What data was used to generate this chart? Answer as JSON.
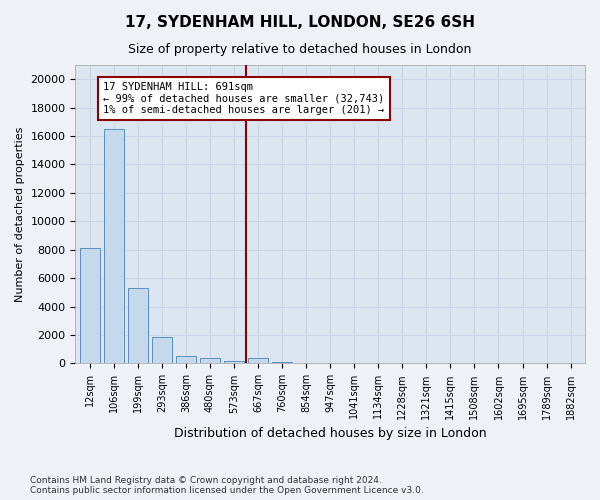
{
  "title": "17, SYDENHAM HILL, LONDON, SE26 6SH",
  "subtitle": "Size of property relative to detached houses in London",
  "xlabel": "Distribution of detached houses by size in London",
  "ylabel": "Number of detached properties",
  "bar_color": "#c5d8ec",
  "bar_edge_color": "#5a8fc2",
  "grid_color": "#c8d4e8",
  "background_color": "#dce6f1",
  "vline_color": "#8b0000",
  "vline_x": 6.5,
  "annotation_text": "17 SYDENHAM HILL: 691sqm\n← 99% of detached houses are smaller (32,743)\n1% of semi-detached houses are larger (201) →",
  "annotation_box_color": "#ffffff",
  "annotation_box_edge": "#8b0000",
  "categories": [
    "12sqm",
    "106sqm",
    "199sqm",
    "293sqm",
    "386sqm",
    "480sqm",
    "573sqm",
    "667sqm",
    "760sqm",
    "854sqm",
    "947sqm",
    "1041sqm",
    "1134sqm",
    "1228sqm",
    "1321sqm",
    "1415sqm",
    "1508sqm",
    "1602sqm",
    "1695sqm",
    "1789sqm",
    "1882sqm"
  ],
  "values": [
    8100,
    16500,
    5300,
    1850,
    540,
    370,
    180,
    380,
    130,
    0,
    0,
    0,
    0,
    0,
    0,
    0,
    0,
    0,
    0,
    0,
    0
  ],
  "ylim": [
    0,
    21000
  ],
  "yticks": [
    0,
    2000,
    4000,
    6000,
    8000,
    10000,
    12000,
    14000,
    16000,
    18000,
    20000
  ],
  "footer_text": "Contains HM Land Registry data © Crown copyright and database right 2024.\nContains public sector information licensed under the Open Government Licence v3.0.",
  "fig_facecolor": "#eef2f7",
  "figsize": [
    6.0,
    5.0
  ],
  "dpi": 100
}
